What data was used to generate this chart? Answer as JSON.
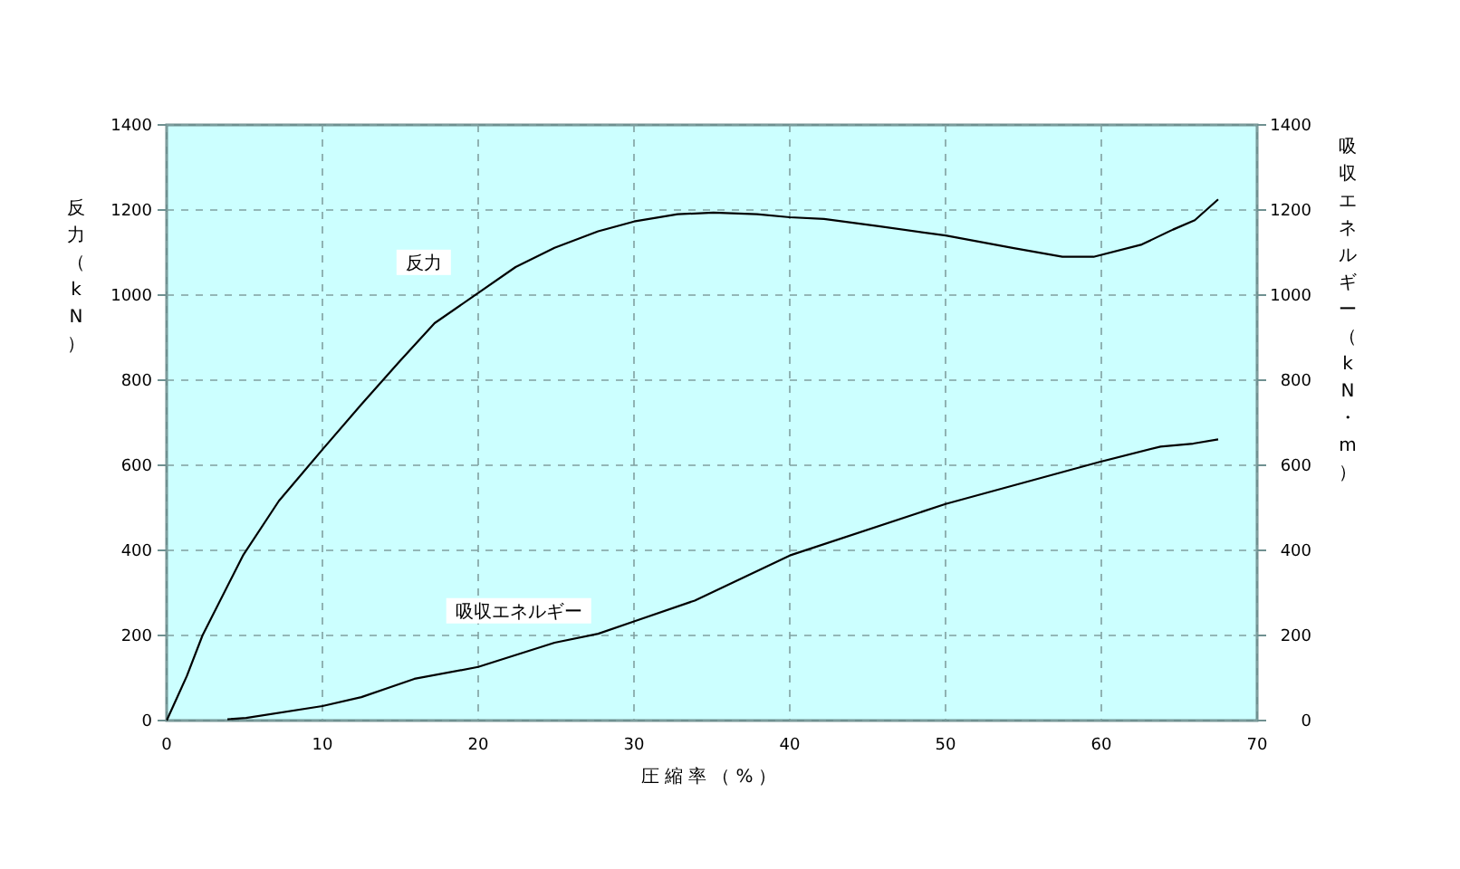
{
  "chart_data": {
    "type": "line",
    "xlabel": "圧縮率（%）",
    "ylabel": "反力（kN）",
    "y2label": "吸収エネルギー（kN・m）",
    "xlim": [
      0,
      70
    ],
    "xticks": [
      0,
      10,
      20,
      30,
      40,
      50,
      60,
      70
    ],
    "ylim": [
      0,
      1400
    ],
    "yticks": [
      0,
      200,
      400,
      600,
      800,
      1000,
      1200,
      1400
    ],
    "y2lim": [
      0,
      1400
    ],
    "y2ticks": [
      0,
      200,
      400,
      600,
      800,
      1000,
      1200,
      1400
    ],
    "grid": true,
    "line_style": "solid",
    "marker": "none",
    "series": [
      {
        "name": "反力",
        "color": "#000000",
        "x": [
          0,
          1.3,
          2.3,
          4.9,
          7.2,
          10.0,
          12.5,
          14.9,
          17.2,
          20.0,
          22.4,
          24.9,
          27.7,
          30.0,
          32.8,
          35.1,
          37.9,
          40.0,
          42.2,
          45.7,
          50.0,
          54.3,
          57.5,
          59.5,
          62.6,
          64.6,
          66.0,
          67.5
        ],
        "values": [
          0,
          105,
          200,
          388,
          516,
          637,
          743,
          842,
          934,
          1005,
          1066,
          1111,
          1150,
          1173,
          1190,
          1194,
          1190,
          1183,
          1179,
          1162,
          1140,
          1111,
          1090,
          1090,
          1119,
          1154,
          1176,
          1225
        ]
      },
      {
        "name": "吸収エネルギー",
        "color": "#000000",
        "x": [
          3.9,
          5.1,
          10.0,
          12.5,
          15.9,
          20.0,
          24.9,
          27.7,
          30.0,
          33.9,
          40.0,
          50.0,
          59.9,
          63.8,
          65.9,
          67.5
        ],
        "values": [
          3,
          6,
          34,
          55,
          98,
          126,
          183,
          204,
          233,
          282,
          388,
          509,
          608,
          644,
          651,
          661
        ]
      }
    ]
  }
}
